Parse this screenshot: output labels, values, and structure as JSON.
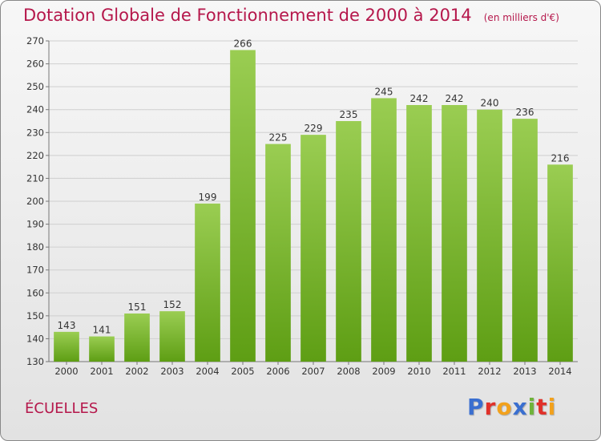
{
  "title": "Dotation Globale de Fonctionnement de 2000 à 2014",
  "unit_label": "(en milliers d'€)",
  "commune": "ÉCUELLES",
  "logo": {
    "letters": [
      {
        "char": "P",
        "color": "#3a6fd0"
      },
      {
        "char": "r",
        "color": "#e0312a"
      },
      {
        "char": "o",
        "color": "#f2a11c"
      },
      {
        "char": "x",
        "color": "#3a6fd0"
      },
      {
        "char": "i",
        "color": "#6fb33a"
      },
      {
        "char": "t",
        "color": "#e0312a"
      },
      {
        "char": "i",
        "color": "#f2a11c"
      }
    ]
  },
  "colors": {
    "accent": "#b5174b",
    "bar_top": "#9acd52",
    "bar_bottom": "#5e9e14"
  },
  "chart_data": {
    "type": "bar",
    "categories": [
      "2000",
      "2001",
      "2002",
      "2003",
      "2004",
      "2005",
      "2006",
      "2007",
      "2008",
      "2009",
      "2010",
      "2011",
      "2012",
      "2013",
      "2014"
    ],
    "values": [
      143,
      141,
      151,
      152,
      199,
      266,
      225,
      229,
      235,
      245,
      242,
      242,
      240,
      236,
      216
    ],
    "ylim": [
      130,
      270
    ],
    "yticks": [
      130,
      140,
      150,
      160,
      170,
      180,
      190,
      200,
      210,
      220,
      230,
      240,
      250,
      260,
      270
    ],
    "grid": true,
    "xlabel": "",
    "ylabel": ""
  }
}
